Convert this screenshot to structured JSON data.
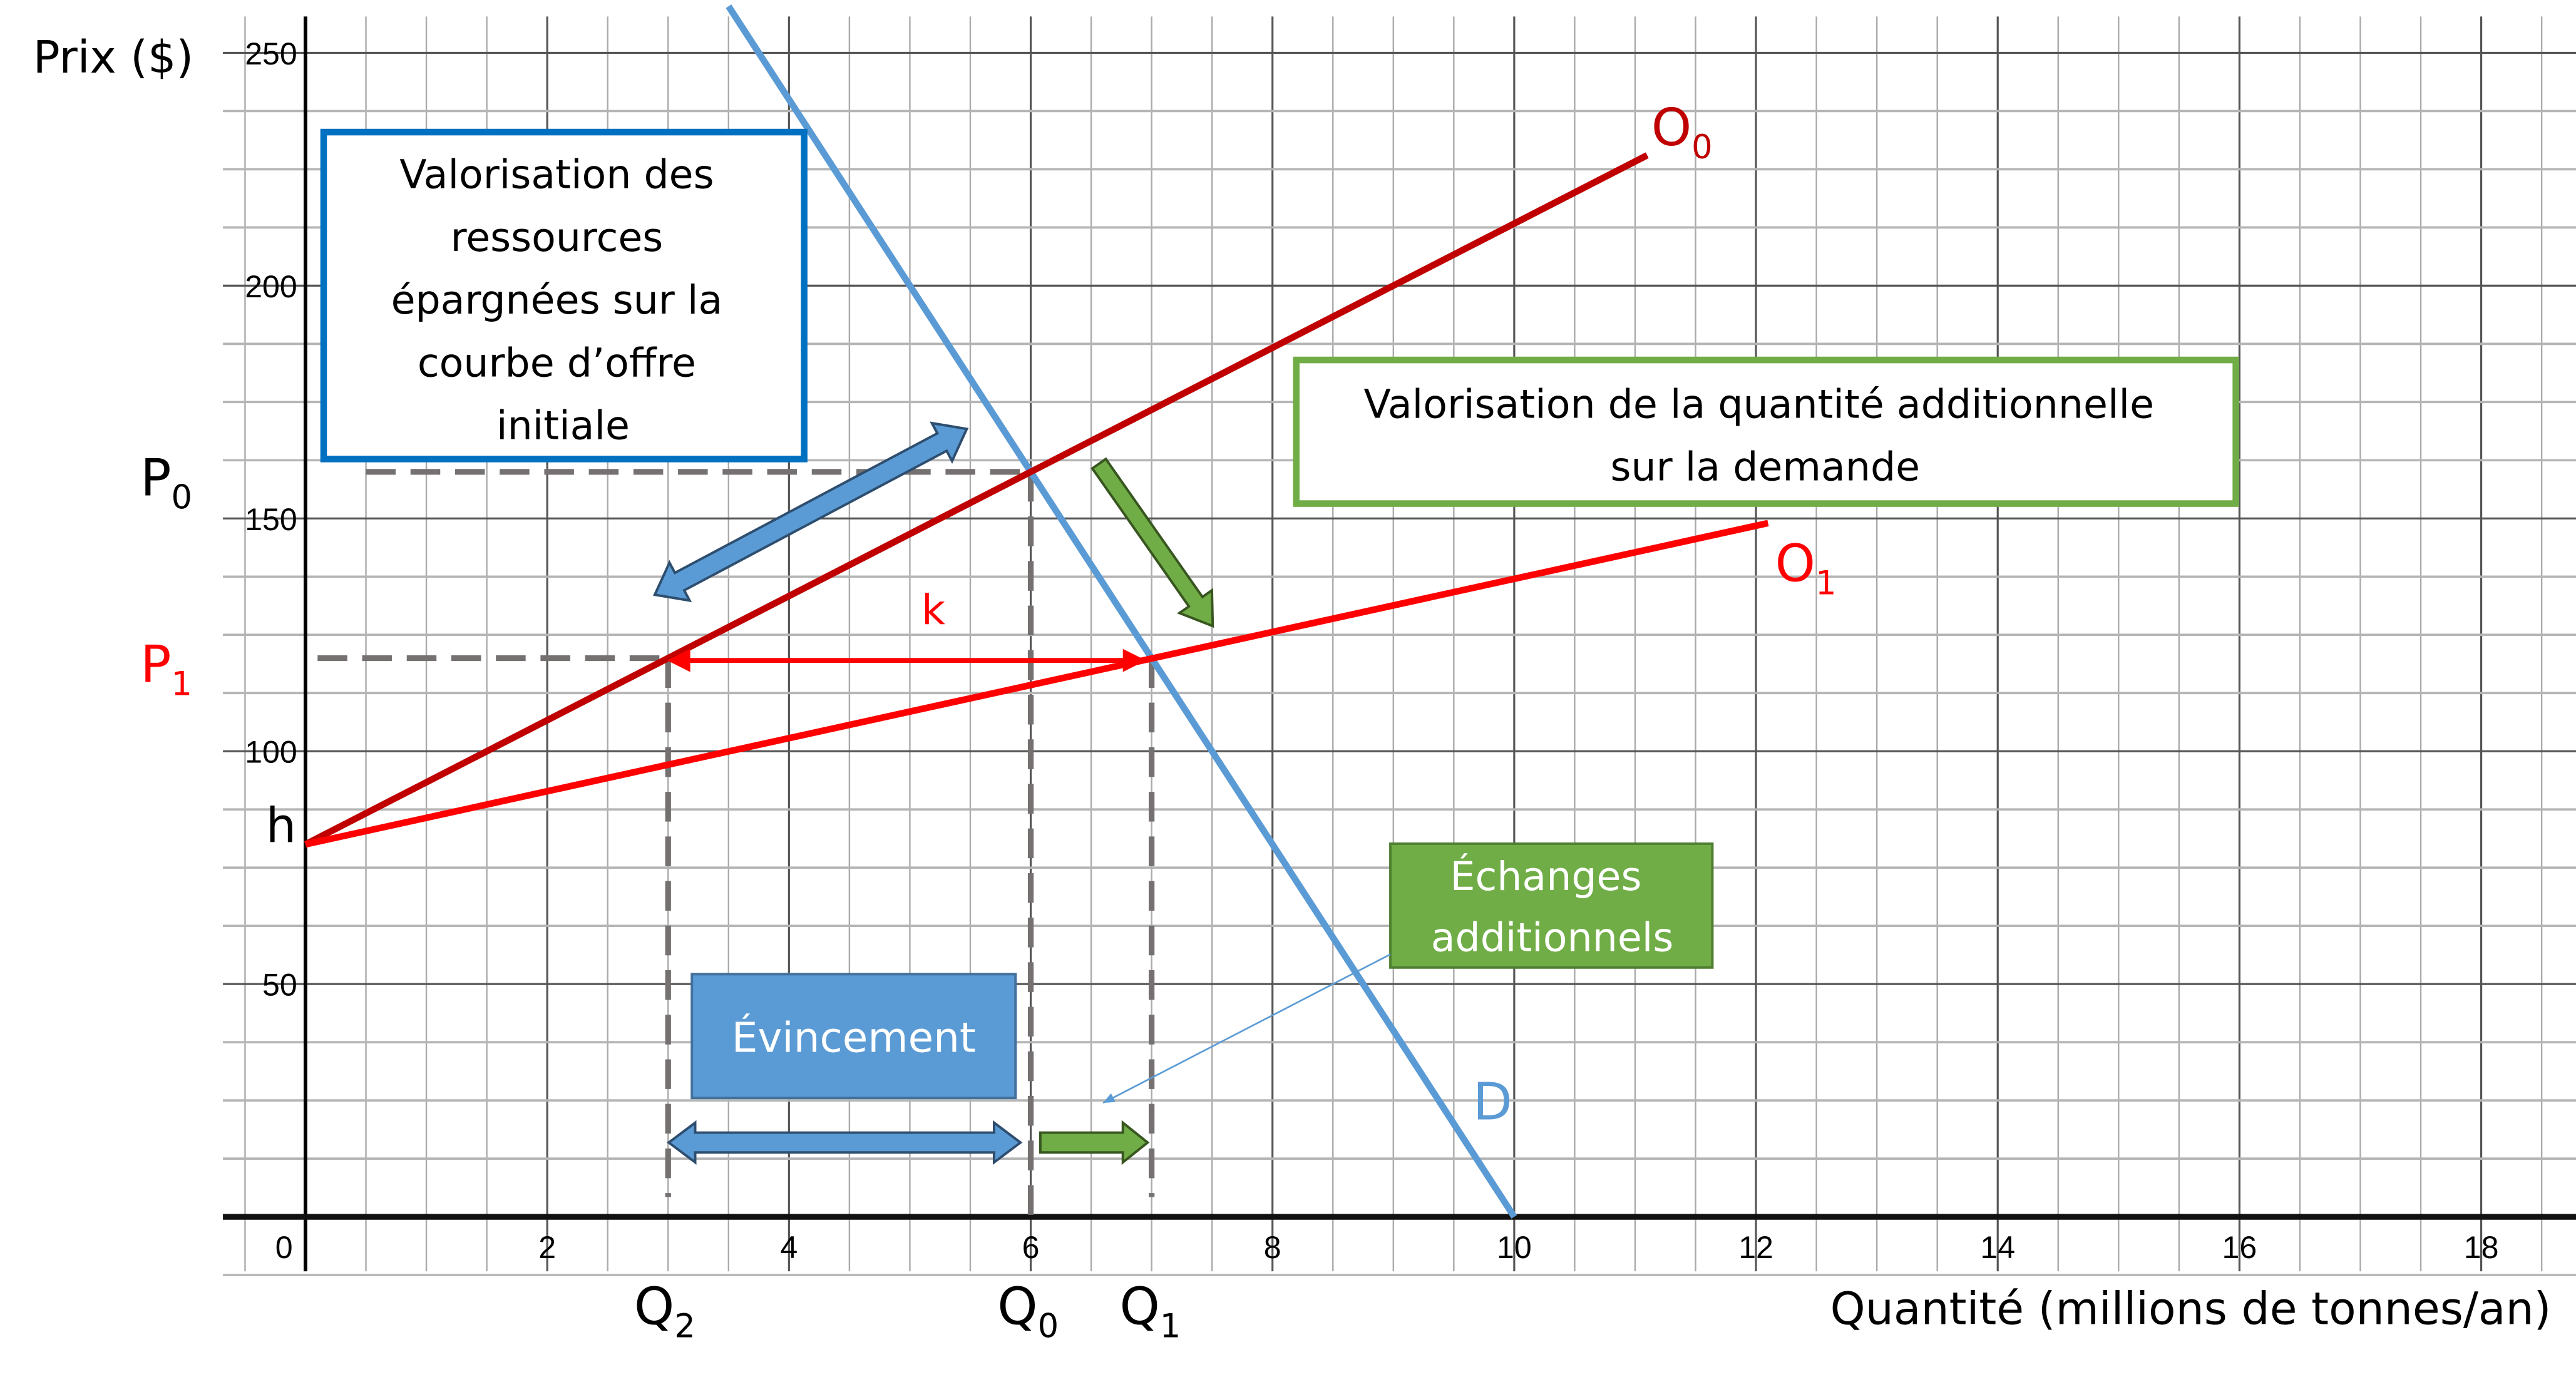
{
  "chart_data": {
    "type": "line",
    "ylabel": "Prix ($)",
    "xlabel": "Quantité (millions de tonnes/an)",
    "xlim": [
      0,
      19
    ],
    "ylim": [
      0,
      260
    ],
    "x_ticks": [
      "0",
      "2",
      "4",
      "6",
      "8",
      "10",
      "12",
      "14",
      "16",
      "18"
    ],
    "y_ticks": [
      "50",
      "100",
      "150",
      "200",
      "250"
    ],
    "grid": true,
    "series": [
      {
        "name": "D",
        "color": "#5b9bd5",
        "points": [
          [
            3.5,
            260
          ],
          [
            10,
            0
          ]
        ]
      },
      {
        "name": "O0",
        "color": "#c00000",
        "points": [
          [
            0,
            80
          ],
          [
            11.1,
            228
          ]
        ]
      },
      {
        "name": "O1",
        "color": "#ff0000",
        "points": [
          [
            0,
            80
          ],
          [
            12.1,
            149
          ]
        ]
      }
    ],
    "levels": {
      "P0": {
        "label": "P",
        "sub": "0",
        "value": 160
      },
      "P1": {
        "label": "P",
        "sub": "1",
        "value": 120
      },
      "h": {
        "label": "h",
        "value": 80
      },
      "Q2": {
        "label": "Q",
        "sub": "2",
        "value": 3
      },
      "Q0": {
        "label": "Q",
        "sub": "0",
        "value": 6
      },
      "Q1": {
        "label": "Q",
        "sub": "1",
        "value": 7
      }
    },
    "k_label": "k",
    "curve_labels": {
      "O0": {
        "main": "O",
        "sub": "0"
      },
      "O1": {
        "main": "O",
        "sub": "1"
      },
      "D": {
        "main": "D"
      }
    }
  },
  "annotations": {
    "resources_box": [
      "Valorisation des",
      "ressources",
      "épargnées sur la",
      "courbe d’offre",
      "initiale"
    ],
    "demand_box": [
      "Valorisation de la quantité additionnelle",
      "sur la demande"
    ],
    "crowding_out": "Évincement",
    "additional_trade": [
      "Échanges",
      "additionnels"
    ]
  },
  "colors": {
    "blue_box": "#0070c0",
    "green_box": "#70ad47",
    "blue_fill": "#5b9bd5",
    "green_fill": "#70ad47",
    "dashed": "#767171"
  }
}
